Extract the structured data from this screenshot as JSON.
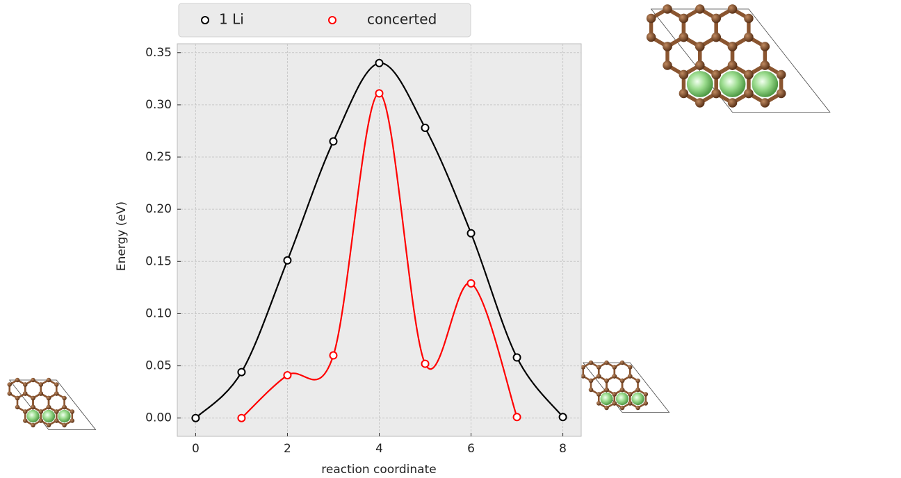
{
  "chart_data": {
    "type": "line",
    "xlabel": "reaction coordinate",
    "ylabel": "Energy (eV)",
    "series": [
      {
        "name": "1 Li",
        "color": "#000000",
        "x": [
          0,
          1,
          2,
          3,
          4,
          5,
          6,
          7,
          8
        ],
        "values": [
          0.0,
          0.044,
          0.151,
          0.265,
          0.34,
          0.278,
          0.177,
          0.058,
          0.001
        ]
      },
      {
        "name": "concerted",
        "color": "#ff0000",
        "x": [
          1,
          2,
          3,
          4,
          5,
          6,
          7
        ],
        "values": [
          0.0,
          0.041,
          0.06,
          0.311,
          0.052,
          0.129,
          0.001
        ]
      }
    ],
    "xlim": [
      -0.4,
      8.4
    ],
    "xticks": [
      0,
      2,
      4,
      6,
      8
    ],
    "ylim": [
      -0.0175,
      0.3585
    ],
    "yticks": [
      {
        "value": 0,
        "label": "0.00"
      },
      0.05,
      {
        "value": 0.1,
        "label": "0.10"
      },
      0.15,
      {
        "value": 0.2,
        "label": "0.20"
      },
      0.25,
      {
        "value": 0.3,
        "label": "0.30"
      },
      0.35
    ],
    "grid": true,
    "legend": "top"
  }
}
